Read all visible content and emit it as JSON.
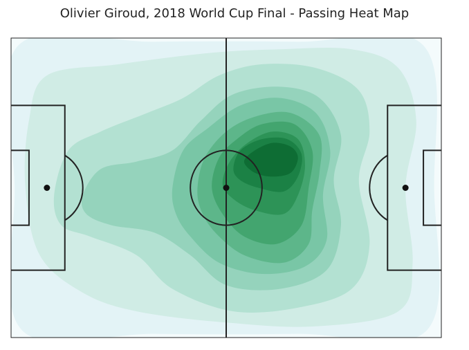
{
  "chart_data": {
    "type": "heatmap",
    "title": "Olivier Giroud, 2018 World Cup Final - Passing Heat Map",
    "xlabel": "",
    "ylabel": "",
    "xlim": [
      0,
      120
    ],
    "ylim": [
      0,
      80
    ],
    "grid": false,
    "colormap": [
      "#f4fbfc",
      "#e3f3f6",
      "#d0ece5",
      "#b3e1d2",
      "#95d3bc",
      "#79c6a6",
      "#5db68a",
      "#43a56f",
      "#2d9357",
      "#1b8145",
      "#0e6d34"
    ],
    "density_contours": [
      {
        "level": 1,
        "points": [
          [
            2,
            2
          ],
          [
            40,
            1
          ],
          [
            80,
            1
          ],
          [
            115,
            2
          ],
          [
            118,
            40
          ],
          [
            116,
            78
          ],
          [
            80,
            79
          ],
          [
            40,
            79
          ],
          [
            3,
            78
          ],
          [
            1,
            40
          ]
        ]
      },
      {
        "level": 2,
        "points": [
          [
            5,
            22
          ],
          [
            10,
            10
          ],
          [
            30,
            7
          ],
          [
            55,
            4
          ],
          [
            75,
            3
          ],
          [
            95,
            3
          ],
          [
            108,
            8
          ],
          [
            113,
            22
          ],
          [
            110,
            40
          ],
          [
            112,
            60
          ],
          [
            108,
            73
          ],
          [
            85,
            77
          ],
          [
            60,
            76
          ],
          [
            35,
            73
          ],
          [
            20,
            68
          ],
          [
            8,
            58
          ],
          [
            4,
            40
          ]
        ]
      },
      {
        "level": 3,
        "points": [
          [
            12,
            42
          ],
          [
            16,
            30
          ],
          [
            25,
            25
          ],
          [
            38,
            20
          ],
          [
            48,
            16
          ],
          [
            58,
            10
          ],
          [
            70,
            7
          ],
          [
            85,
            8
          ],
          [
            97,
            14
          ],
          [
            100,
            25
          ],
          [
            97,
            38
          ],
          [
            100,
            55
          ],
          [
            95,
            67
          ],
          [
            80,
            72
          ],
          [
            62,
            73
          ],
          [
            45,
            67
          ],
          [
            35,
            58
          ],
          [
            22,
            53
          ],
          [
            14,
            50
          ]
        ]
      },
      {
        "level": 4,
        "points": [
          [
            20,
            42
          ],
          [
            25,
            35
          ],
          [
            35,
            33
          ],
          [
            45,
            30
          ],
          [
            53,
            22
          ],
          [
            62,
            15
          ],
          [
            75,
            13
          ],
          [
            86,
            16
          ],
          [
            92,
            26
          ],
          [
            90,
            38
          ],
          [
            92,
            50
          ],
          [
            88,
            62
          ],
          [
            75,
            67
          ],
          [
            60,
            66
          ],
          [
            50,
            58
          ],
          [
            40,
            52
          ],
          [
            28,
            50
          ],
          [
            21,
            47
          ]
        ]
      },
      {
        "level": 5,
        "points": [
          [
            45,
            40
          ],
          [
            48,
            30
          ],
          [
            55,
            24
          ],
          [
            64,
            18
          ],
          [
            75,
            16
          ],
          [
            85,
            20
          ],
          [
            89,
            30
          ],
          [
            87,
            42
          ],
          [
            88,
            54
          ],
          [
            82,
            61
          ],
          [
            70,
            63
          ],
          [
            58,
            60
          ],
          [
            50,
            53
          ],
          [
            46,
            47
          ]
        ]
      },
      {
        "level": 6,
        "points": [
          [
            52,
            40
          ],
          [
            54,
            32
          ],
          [
            60,
            25
          ],
          [
            68,
            21
          ],
          [
            78,
            20
          ],
          [
            86,
            26
          ],
          [
            86,
            36
          ],
          [
            84,
            46
          ],
          [
            83,
            55
          ],
          [
            76,
            60
          ],
          [
            65,
            58
          ],
          [
            57,
            52
          ],
          [
            53,
            46
          ]
        ]
      },
      {
        "level": 7,
        "points": [
          [
            56,
            40
          ],
          [
            58,
            32
          ],
          [
            63,
            27
          ],
          [
            70,
            23
          ],
          [
            79,
            23
          ],
          [
            84,
            30
          ],
          [
            83,
            40
          ],
          [
            81,
            50
          ],
          [
            74,
            55
          ],
          [
            65,
            53
          ],
          [
            59,
            47
          ]
        ]
      },
      {
        "level": 8,
        "points": [
          [
            59,
            39
          ],
          [
            61,
            33
          ],
          [
            66,
            28
          ],
          [
            73,
            25
          ],
          [
            80,
            27
          ],
          [
            82,
            34
          ],
          [
            80,
            42
          ],
          [
            76,
            47
          ],
          [
            68,
            46
          ],
          [
            62,
            43
          ]
        ]
      },
      {
        "level": 9,
        "points": [
          [
            62,
            35
          ],
          [
            64,
            30
          ],
          [
            70,
            27
          ],
          [
            77,
            27
          ],
          [
            81,
            31
          ],
          [
            80,
            37
          ],
          [
            76,
            41
          ],
          [
            69,
            40
          ],
          [
            64,
            38
          ]
        ]
      },
      {
        "level": 10,
        "points": [
          [
            65,
            33
          ],
          [
            68,
            30
          ],
          [
            73,
            28
          ],
          [
            78,
            29
          ],
          [
            80,
            32
          ],
          [
            78,
            36
          ],
          [
            73,
            37
          ],
          [
            68,
            36
          ]
        ]
      }
    ]
  }
}
